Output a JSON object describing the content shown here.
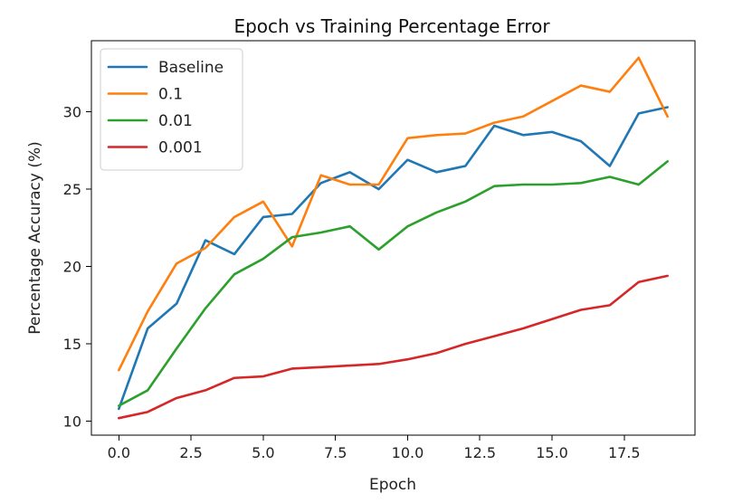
{
  "chart_data": {
    "type": "line",
    "title": "Epoch vs Training Percentage Error",
    "xlabel": "Epoch",
    "ylabel": "Percentage Accuracy (%)",
    "xlim": [
      -0.95,
      19.95
    ],
    "ylim": [
      9.1,
      34.6
    ],
    "x_ticks": [
      0,
      2.5,
      5,
      7.5,
      10,
      12.5,
      15,
      17.5
    ],
    "x_tick_labels": [
      "0.0",
      "2.5",
      "5.0",
      "7.5",
      "10.0",
      "12.5",
      "15.0",
      "17.5"
    ],
    "y_ticks": [
      10,
      15,
      20,
      25,
      30
    ],
    "y_tick_labels": [
      "10",
      "15",
      "20",
      "25",
      "30"
    ],
    "grid": false,
    "legend_position": "top-left",
    "x": [
      0,
      1,
      2,
      3,
      4,
      5,
      6,
      7,
      8,
      9,
      10,
      11,
      12,
      13,
      14,
      15,
      16,
      17,
      18,
      19
    ],
    "series": [
      {
        "name": "Baseline",
        "color": "#1f77b4",
        "values": [
          10.8,
          16.0,
          17.6,
          21.7,
          20.8,
          23.2,
          23.4,
          25.4,
          26.1,
          25.0,
          26.9,
          26.1,
          26.5,
          29.1,
          28.5,
          28.7,
          28.1,
          26.5,
          29.9,
          30.3
        ]
      },
      {
        "name": "0.1",
        "color": "#ff7f0e",
        "values": [
          13.3,
          17.1,
          20.2,
          21.2,
          23.2,
          24.2,
          21.3,
          25.9,
          25.3,
          25.3,
          28.3,
          28.5,
          28.6,
          29.3,
          29.7,
          30.7,
          31.7,
          31.3,
          33.5,
          29.7
        ]
      },
      {
        "name": "0.01",
        "color": "#2ca02c",
        "values": [
          11.0,
          12.0,
          14.7,
          17.3,
          19.5,
          20.5,
          21.9,
          22.2,
          22.6,
          21.1,
          22.6,
          23.5,
          24.2,
          25.2,
          25.3,
          25.3,
          25.4,
          25.8,
          25.3,
          26.8
        ]
      },
      {
        "name": "0.001",
        "color": "#d62728",
        "values": [
          10.2,
          10.6,
          11.5,
          12.0,
          12.8,
          12.9,
          13.4,
          13.5,
          13.6,
          13.7,
          14.0,
          14.4,
          15.0,
          15.5,
          16.0,
          16.6,
          17.2,
          17.5,
          19.0,
          19.4
        ]
      }
    ]
  }
}
